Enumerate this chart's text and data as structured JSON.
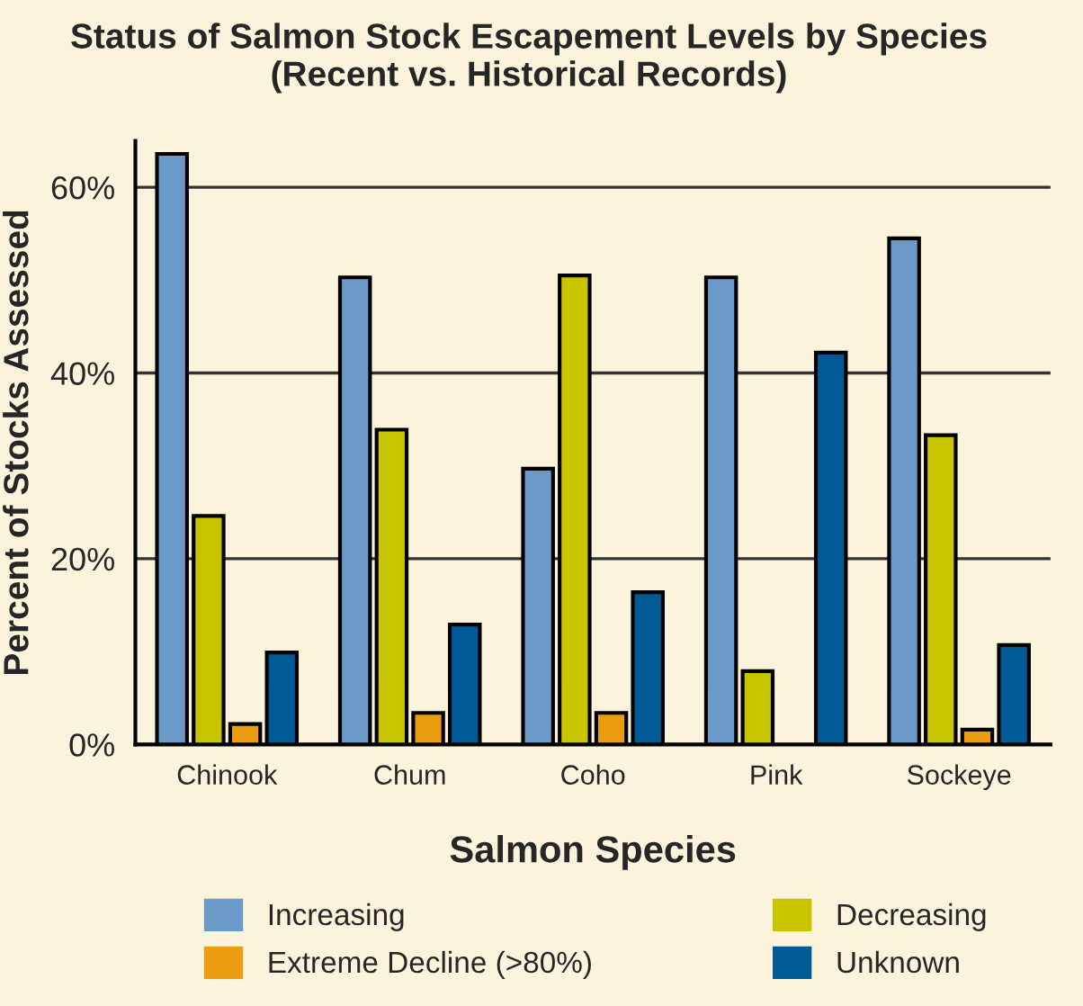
{
  "chart_data": {
    "type": "bar",
    "title": "Status of Salmon Stock Escapement Levels by Species\n(Recent vs. Historical Records)",
    "xlabel": "Salmon Species",
    "ylabel": "Percent of Stocks Assessed",
    "categories": [
      "Chinook",
      "Chum",
      "Coho",
      "Pink",
      "Sockeye"
    ],
    "series": [
      {
        "name": "Increasing",
        "color": "#6b9ac8",
        "values": [
          63.6,
          50.3,
          29.7,
          50.3,
          54.5
        ]
      },
      {
        "name": "Decreasing",
        "color": "#c8c400",
        "values": [
          24.6,
          33.9,
          50.5,
          7.9,
          33.3
        ]
      },
      {
        "name": "Extreme Decline (>80%)",
        "color": "#eb9c10",
        "values": [
          2.2,
          3.4,
          3.4,
          null,
          1.6
        ]
      },
      {
        "name": "Unknown",
        "color": "#005a96",
        "values": [
          9.9,
          12.9,
          16.4,
          42.2,
          10.7
        ]
      }
    ],
    "ylim": [
      0,
      65
    ],
    "yticks": [
      {
        "value": 0,
        "label": "0%"
      },
      {
        "value": 20,
        "label": "20%"
      },
      {
        "value": 40,
        "label": "40%"
      },
      {
        "value": 60,
        "label": "60%"
      }
    ],
    "grid": "y",
    "legend": "bottom"
  }
}
